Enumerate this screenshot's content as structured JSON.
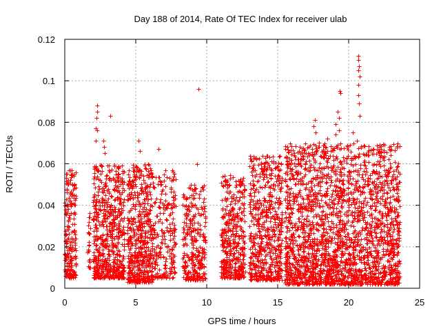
{
  "chart_data": {
    "type": "scatter",
    "title": "Day 188 of 2014, Rate Of TEC Index for receiver ulab",
    "xlabel": "GPS time / hours",
    "ylabel": "ROTI / TECUs",
    "xlim": [
      0,
      25
    ],
    "ylim": [
      0,
      0.12
    ],
    "xticks": [
      0,
      5,
      10,
      15,
      20,
      25
    ],
    "xtick_labels": [
      "0",
      "5",
      "10",
      "15",
      "20",
      "25"
    ],
    "yticks": [
      0,
      0.02,
      0.04,
      0.06,
      0.08,
      0.1,
      0.12
    ],
    "ytick_labels": [
      "0",
      "0.02",
      "0.04",
      "0.06",
      "0.08",
      "0.1",
      "0.12"
    ],
    "grid": true,
    "marker": "+",
    "marker_color": "#ff0000",
    "clusters": [
      {
        "x0": 0.0,
        "x1": 0.8,
        "ymin": 0.005,
        "ymax": 0.057,
        "n": 220
      },
      {
        "x0": 1.6,
        "x1": 1.8,
        "ymin": 0.01,
        "ymax": 0.041,
        "n": 25
      },
      {
        "x0": 2.0,
        "x1": 4.2,
        "ymin": 0.005,
        "ymax": 0.06,
        "n": 650
      },
      {
        "x0": 4.4,
        "x1": 6.2,
        "ymin": 0.003,
        "ymax": 0.06,
        "n": 560
      },
      {
        "x0": 6.2,
        "x1": 7.8,
        "ymin": 0.005,
        "ymax": 0.057,
        "n": 220
      },
      {
        "x0": 8.3,
        "x1": 9.9,
        "ymin": 0.004,
        "ymax": 0.05,
        "n": 300
      },
      {
        "x0": 11.0,
        "x1": 12.7,
        "ymin": 0.005,
        "ymax": 0.055,
        "n": 430
      },
      {
        "x0": 13.0,
        "x1": 15.3,
        "ymin": 0.004,
        "ymax": 0.064,
        "n": 600
      },
      {
        "x0": 15.5,
        "x1": 23.6,
        "ymin": 0.002,
        "ymax": 0.07,
        "n": 2400
      }
    ],
    "spikes": [
      {
        "x": 2.3,
        "y": 0.088
      },
      {
        "x": 2.3,
        "y": 0.085
      },
      {
        "x": 2.25,
        "y": 0.082
      },
      {
        "x": 2.2,
        "y": 0.077
      },
      {
        "x": 2.3,
        "y": 0.076
      },
      {
        "x": 2.2,
        "y": 0.071
      },
      {
        "x": 2.7,
        "y": 0.071
      },
      {
        "x": 2.75,
        "y": 0.068
      },
      {
        "x": 2.8,
        "y": 0.065
      },
      {
        "x": 3.2,
        "y": 0.083
      },
      {
        "x": 5.2,
        "y": 0.071
      },
      {
        "x": 5.3,
        "y": 0.066
      },
      {
        "x": 6.6,
        "y": 0.067
      },
      {
        "x": 9.4,
        "y": 0.096
      },
      {
        "x": 9.3,
        "y": 0.06
      },
      {
        "x": 17.6,
        "y": 0.081
      },
      {
        "x": 17.5,
        "y": 0.078
      },
      {
        "x": 17.65,
        "y": 0.075
      },
      {
        "x": 19.2,
        "y": 0.085
      },
      {
        "x": 19.3,
        "y": 0.082
      },
      {
        "x": 19.1,
        "y": 0.079
      },
      {
        "x": 19.3,
        "y": 0.076
      },
      {
        "x": 19.4,
        "y": 0.094
      },
      {
        "x": 19.35,
        "y": 0.095
      },
      {
        "x": 19.1,
        "y": 0.074
      },
      {
        "x": 20.7,
        "y": 0.112
      },
      {
        "x": 20.7,
        "y": 0.11
      },
      {
        "x": 20.75,
        "y": 0.107
      },
      {
        "x": 20.7,
        "y": 0.105
      },
      {
        "x": 20.8,
        "y": 0.102
      },
      {
        "x": 20.7,
        "y": 0.098
      },
      {
        "x": 20.7,
        "y": 0.093
      },
      {
        "x": 20.75,
        "y": 0.089
      },
      {
        "x": 20.8,
        "y": 0.083
      },
      {
        "x": 20.3,
        "y": 0.075
      },
      {
        "x": 20.6,
        "y": 0.071
      },
      {
        "x": 18.5,
        "y": 0.072
      },
      {
        "x": 22.2,
        "y": 0.064
      },
      {
        "x": 22.8,
        "y": 0.062
      },
      {
        "x": 23.4,
        "y": 0.043
      },
      {
        "x": 20.8,
        "y": 0.002
      },
      {
        "x": 16.5,
        "y": 0.066
      }
    ]
  }
}
